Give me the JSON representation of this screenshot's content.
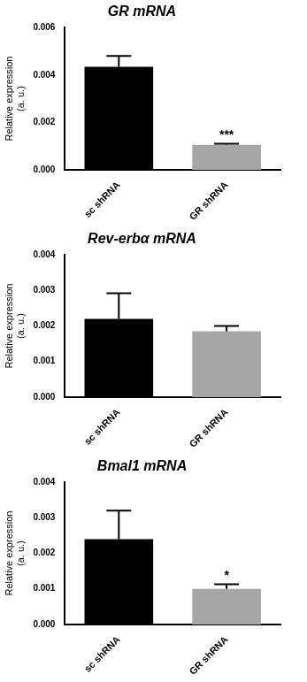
{
  "chart_data": [
    {
      "type": "bar",
      "title": "GR mRNA",
      "y_label": "Relative expression\n(a. u.)",
      "categories": [
        "sc shRNA",
        "GR shRNA"
      ],
      "values": [
        0.00435,
        0.00105
      ],
      "errors": [
        0.00045,
        5e-05
      ],
      "colors": [
        "#000000",
        "#a6a6a6"
      ],
      "ylim": [
        0,
        0.006
      ],
      "yticks": [
        {
          "value": 0,
          "label": "0.000"
        },
        {
          "value": 0.002,
          "label": "0.002"
        },
        {
          "value": 0.004,
          "label": "0.004"
        },
        {
          "value": 0.006,
          "label": "0.006"
        }
      ],
      "grid": false,
      "annotations": [
        {
          "category": "GR shRNA",
          "text": "***"
        }
      ]
    },
    {
      "type": "bar",
      "title": "Rev-erbα mRNA",
      "y_label": "Relative expression\n(a. u.)",
      "categories": [
        "sc shRNA",
        "GR shRNA"
      ],
      "values": [
        0.0022,
        0.00185
      ],
      "errors": [
        0.00072,
        0.00015
      ],
      "colors": [
        "#000000",
        "#a6a6a6"
      ],
      "ylim": [
        0,
        0.004
      ],
      "yticks": [
        {
          "value": 0,
          "label": "0.000"
        },
        {
          "value": 0.001,
          "label": "0.001"
        },
        {
          "value": 0.002,
          "label": "0.002"
        },
        {
          "value": 0.003,
          "label": "0.003"
        },
        {
          "value": 0.004,
          "label": "0.004"
        }
      ],
      "grid": false,
      "annotations": []
    },
    {
      "type": "bar",
      "title": "Bmal1 mRNA",
      "y_label": "Relative expression\n(a. u.)",
      "categories": [
        "sc shRNA",
        "GR shRNA"
      ],
      "values": [
        0.0024,
        0.001
      ],
      "errors": [
        0.0008,
        0.00013
      ],
      "colors": [
        "#000000",
        "#a6a6a6"
      ],
      "ylim": [
        0,
        0.004
      ],
      "yticks": [
        {
          "value": 0,
          "label": "0.000"
        },
        {
          "value": 0.001,
          "label": "0.001"
        },
        {
          "value": 0.002,
          "label": "0.002"
        },
        {
          "value": 0.003,
          "label": "0.003"
        },
        {
          "value": 0.004,
          "label": "0.004"
        }
      ],
      "grid": false,
      "annotations": [
        {
          "category": "GR shRNA",
          "text": "*"
        }
      ]
    }
  ]
}
